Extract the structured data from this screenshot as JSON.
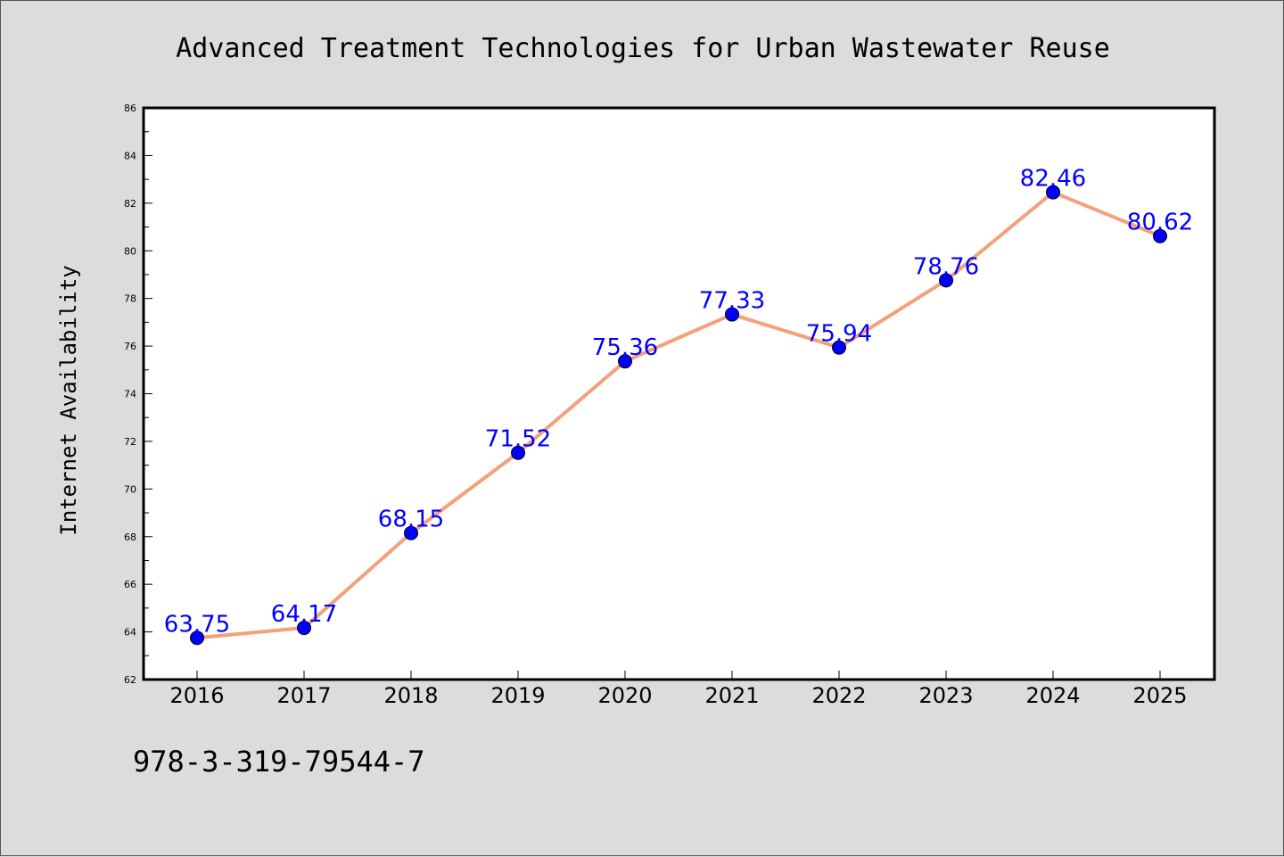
{
  "chart_data": {
    "type": "line",
    "title": "Advanced Treatment Technologies for Urban Wastewater Reuse",
    "xlabel": "",
    "ylabel": "Internet Availability",
    "x": [
      "2016",
      "2017",
      "2018",
      "2019",
      "2020",
      "2021",
      "2022",
      "2023",
      "2024",
      "2025"
    ],
    "series": [
      {
        "values": [
          63.75,
          64.17,
          68.15,
          71.52,
          75.36,
          77.33,
          75.94,
          78.76,
          82.46,
          80.62
        ],
        "data_labels": [
          "63.75",
          "64.17",
          "68.15",
          "71.52",
          "75.36",
          "77.33",
          "75.94",
          "78.76",
          "82.46",
          "80.62"
        ],
        "line_color": "#f4a07a",
        "marker_color": "#0000ff"
      }
    ],
    "ylim": [
      62,
      86
    ],
    "yticks": [
      "62",
      "64",
      "66",
      "68",
      "70",
      "72",
      "74",
      "76",
      "78",
      "80",
      "82",
      "84",
      "86"
    ],
    "grid": false,
    "legend": "none"
  },
  "footer": {
    "isbn": "978-3-319-79544-7"
  },
  "colors": {
    "background": "#dcdcdc",
    "plot_area": "#ffffff",
    "line": "#f4a07a",
    "marker": "#0000ff",
    "data_label": "#0000ff"
  }
}
